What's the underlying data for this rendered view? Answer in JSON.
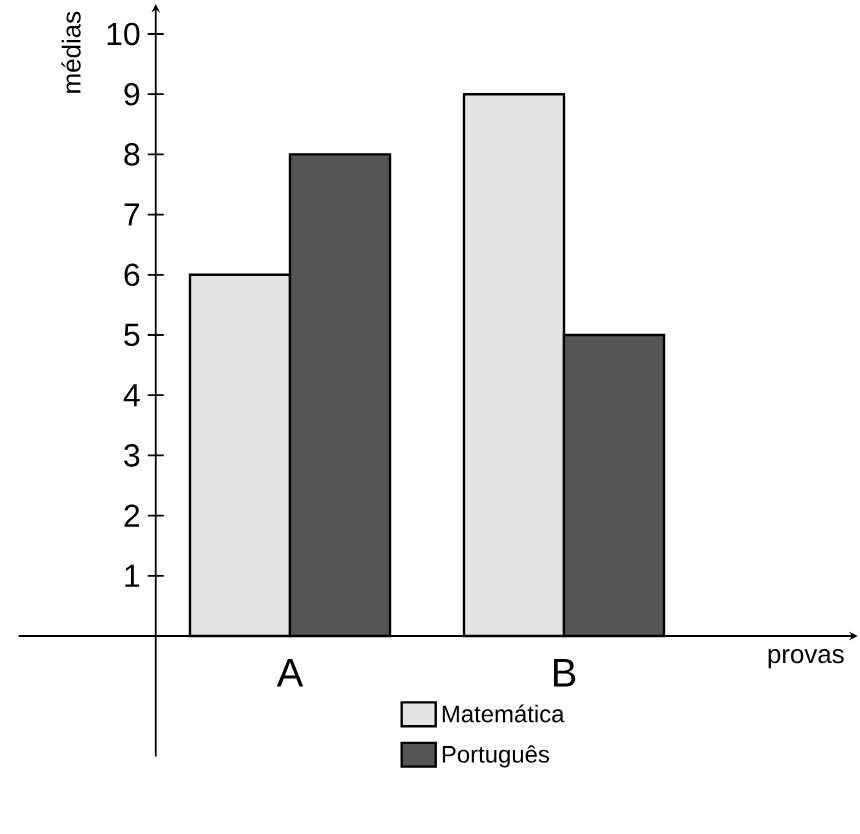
{
  "chart_data": {
    "type": "bar",
    "xlabel": "provas",
    "ylabel": "médias",
    "categories": [
      "A",
      "B"
    ],
    "series": [
      {
        "name": "Matemática",
        "color": "#e4e4e4",
        "values": [
          6,
          9
        ]
      },
      {
        "name": "Português",
        "color": "#555555",
        "values": [
          8,
          5
        ]
      }
    ],
    "ylim": [
      -2,
      10.4
    ],
    "yticks": [
      1,
      2,
      3,
      4,
      5,
      6,
      7,
      8,
      9,
      10
    ],
    "legend": "bottom"
  }
}
